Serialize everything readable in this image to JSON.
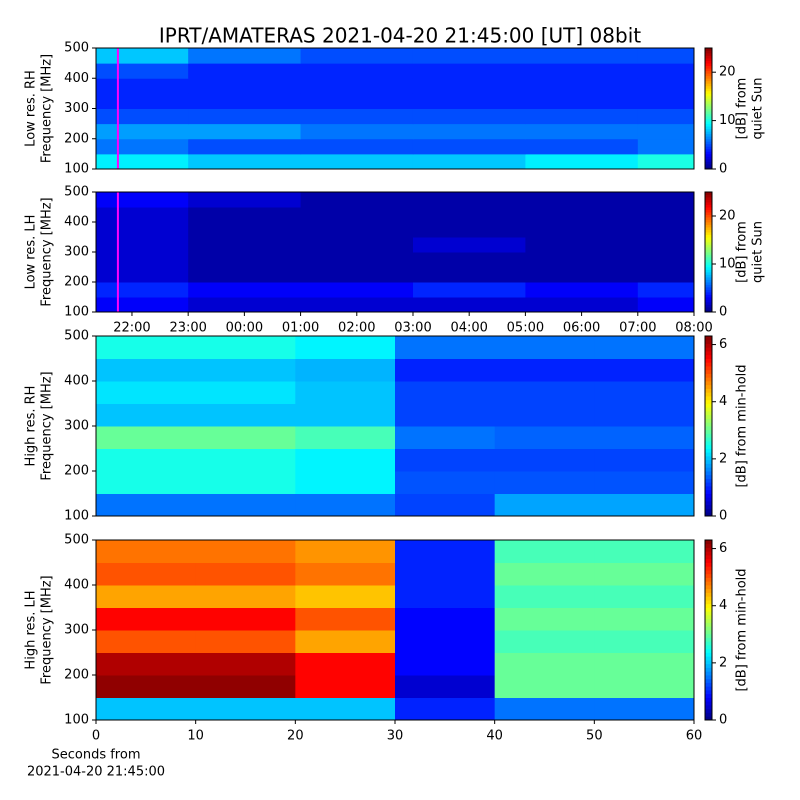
{
  "chart_data": [
    {
      "type": "heatmap",
      "title": "IPRT/AMATERAS 2021-04-20 21:45:00 [UT]   08bit",
      "ylabel": [
        "Low res. RH",
        "Frequency [MHz]"
      ],
      "colorbar_label": [
        "[dB] from",
        "quiet Sun"
      ],
      "colormap": "jet",
      "ylim": [
        100,
        500
      ],
      "yticks": [
        100,
        200,
        300,
        400,
        500
      ],
      "xlim": [
        21.36,
        32
      ],
      "zlim": [
        0,
        25
      ],
      "zticks": [
        0,
        10,
        20
      ],
      "marker_x": 21.75,
      "marker_color": "#ff00ff",
      "x_bins": [
        21.36,
        23,
        25,
        27,
        29,
        31,
        32
      ],
      "y_bins": [
        100,
        150,
        200,
        250,
        300,
        350,
        400,
        450,
        500
      ],
      "z": [
        [
          9,
          8,
          8,
          8,
          9,
          10
        ],
        [
          6,
          5,
          5,
          5,
          5,
          6
        ],
        [
          7,
          7,
          6,
          6,
          6,
          6
        ],
        [
          5,
          5,
          5,
          5,
          5,
          5
        ],
        [
          4,
          4,
          4,
          4,
          4,
          4
        ],
        [
          4,
          4,
          4,
          4,
          4,
          4
        ],
        [
          5,
          4,
          4,
          4,
          4,
          4
        ],
        [
          8,
          6,
          5,
          5,
          5,
          5
        ]
      ]
    },
    {
      "type": "heatmap",
      "ylabel": [
        "Low res. LH",
        "Frequency [MHz]"
      ],
      "colorbar_label": [
        "[dB] from",
        "quiet Sun"
      ],
      "colormap": "jet",
      "ylim": [
        100,
        500
      ],
      "yticks": [
        100,
        200,
        300,
        400,
        500
      ],
      "xlim": [
        21.36,
        32
      ],
      "xticks": [
        {
          "value": 22,
          "label": "22:00"
        },
        {
          "value": 23,
          "label": "23:00"
        },
        {
          "value": 24,
          "label": "00:00"
        },
        {
          "value": 25,
          "label": "01:00"
        },
        {
          "value": 26,
          "label": "02:00"
        },
        {
          "value": 27,
          "label": "03:00"
        },
        {
          "value": 28,
          "label": "04:00"
        },
        {
          "value": 29,
          "label": "05:00"
        },
        {
          "value": 30,
          "label": "06:00"
        },
        {
          "value": 31,
          "label": "07:00"
        },
        {
          "value": 32,
          "label": "08:00"
        }
      ],
      "zlim": [
        0,
        25
      ],
      "zticks": [
        0,
        10,
        20
      ],
      "marker_x": 21.75,
      "marker_color": "#ff00ff",
      "x_bins": [
        21.36,
        23,
        25,
        27,
        29,
        31,
        32
      ],
      "y_bins": [
        100,
        150,
        200,
        250,
        300,
        350,
        400,
        450,
        500
      ],
      "z": [
        [
          3,
          2,
          2,
          2,
          2,
          3
        ],
        [
          4,
          3,
          3,
          4,
          3,
          4
        ],
        [
          2,
          1,
          1,
          1,
          1,
          1
        ],
        [
          2,
          1,
          1,
          1,
          1,
          1
        ],
        [
          2,
          1,
          1,
          2,
          1,
          1
        ],
        [
          2,
          1,
          1,
          1,
          1,
          1
        ],
        [
          2,
          1,
          1,
          1,
          1,
          1
        ],
        [
          3,
          2,
          1,
          1,
          1,
          1
        ]
      ]
    },
    {
      "type": "heatmap",
      "ylabel": [
        "High res. RH",
        "Frequency [MHz]"
      ],
      "colorbar_label": [
        "[dB] from min-hold"
      ],
      "colormap": "jet",
      "ylim": [
        100,
        500
      ],
      "yticks": [
        100,
        200,
        300,
        400,
        500
      ],
      "xlim": [
        0,
        60
      ],
      "zlim": [
        0,
        6.3
      ],
      "zticks": [
        0,
        2,
        4,
        6
      ],
      "x_bins": [
        0,
        10,
        20,
        30,
        40,
        50,
        60
      ],
      "y_bins": [
        100,
        150,
        200,
        250,
        300,
        350,
        400,
        450,
        500
      ],
      "z": [
        [
          1.5,
          1.5,
          1.5,
          1.2,
          1.8,
          1.8
        ],
        [
          2.5,
          2.5,
          2.3,
          1.3,
          1.3,
          1.3
        ],
        [
          2.5,
          2.5,
          2.3,
          1.2,
          1.2,
          1.2
        ],
        [
          3,
          3,
          2.8,
          1.5,
          1.4,
          1.4
        ],
        [
          2,
          2,
          2,
          1.2,
          1.2,
          1.2
        ],
        [
          2.2,
          2.2,
          2,
          1.2,
          1.2,
          1.2
        ],
        [
          2,
          2,
          1.9,
          1,
          1,
          1
        ],
        [
          2.5,
          2.5,
          2.3,
          1.5,
          1.5,
          1.5
        ]
      ]
    },
    {
      "type": "heatmap",
      "ylabel": [
        "High res. LH",
        "Frequency [MHz]"
      ],
      "colorbar_label": [
        "[dB] from min-hold"
      ],
      "xlabel": [
        "Seconds from",
        "2021-04-20 21:45:00"
      ],
      "colormap": "jet",
      "ylim": [
        100,
        500
      ],
      "yticks": [
        100,
        200,
        300,
        400,
        500
      ],
      "xlim": [
        0,
        60
      ],
      "xticks": [
        0,
        10,
        20,
        30,
        40,
        50,
        60
      ],
      "zlim": [
        0,
        6.3
      ],
      "zticks": [
        0,
        2,
        4,
        6
      ],
      "x_bins": [
        0,
        10,
        20,
        30,
        40,
        50,
        60
      ],
      "y_bins": [
        100,
        150,
        200,
        250,
        300,
        350,
        400,
        450,
        500
      ],
      "z": [
        [
          2,
          2,
          2,
          1,
          1.5,
          1.5
        ],
        [
          6.2,
          6.2,
          5.5,
          0.5,
          3,
          3
        ],
        [
          6,
          6,
          5.5,
          0.8,
          3,
          3
        ],
        [
          5,
          5,
          4.5,
          0.8,
          2.8,
          2.8
        ],
        [
          5.5,
          5.5,
          5,
          0.8,
          3,
          3
        ],
        [
          4.5,
          4.5,
          4.3,
          1,
          2.8,
          2.8
        ],
        [
          5,
          5,
          4.8,
          1,
          3,
          3
        ],
        [
          4.8,
          4.8,
          4.6,
          1,
          2.8,
          2.8
        ]
      ]
    }
  ]
}
